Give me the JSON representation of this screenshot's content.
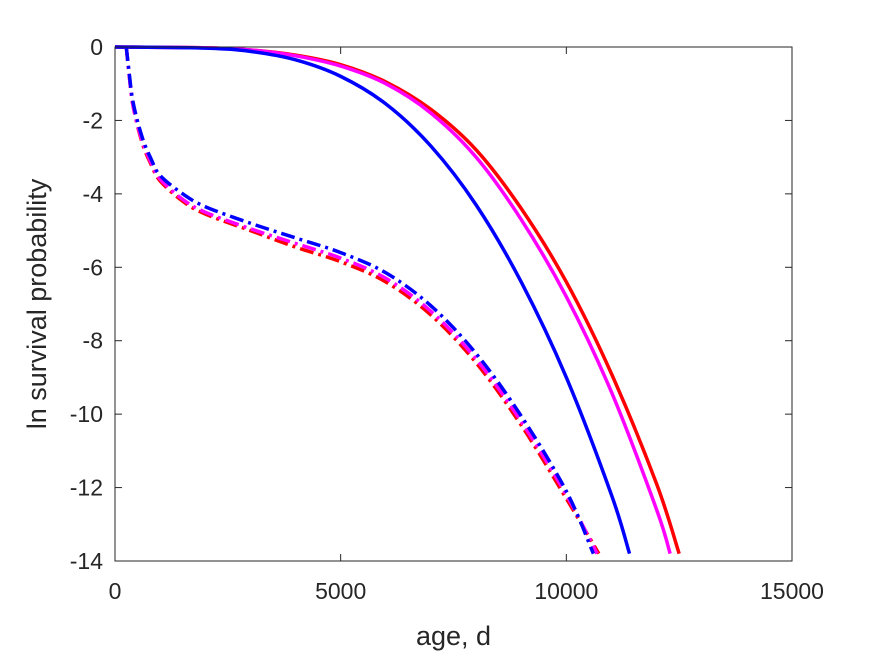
{
  "chart_data": {
    "type": "line",
    "title": "",
    "xlabel": "age, d",
    "ylabel": "ln survival probability",
    "xlim": [
      0,
      15000
    ],
    "ylim": [
      -14,
      0
    ],
    "xticks": [
      0,
      5000,
      10000,
      15000
    ],
    "yticks": [
      0,
      -2,
      -4,
      -6,
      -8,
      -10,
      -12,
      -14
    ],
    "xtick_labels": [
      "0",
      "5000",
      "10000",
      "15000"
    ],
    "ytick_labels": [
      "0",
      "-2",
      "-4",
      "-6",
      "-8",
      "-10",
      "-12",
      "-14"
    ],
    "grid": false,
    "legend": "none",
    "series": [
      {
        "color": "#ff0000",
        "style": "solid",
        "points": [
          [
            0,
            0
          ],
          [
            2000,
            -0.02
          ],
          [
            3000,
            -0.08
          ],
          [
            4000,
            -0.22
          ],
          [
            5000,
            -0.48
          ],
          [
            6000,
            -0.95
          ],
          [
            7000,
            -1.7
          ],
          [
            8000,
            -2.8
          ],
          [
            9000,
            -4.4
          ],
          [
            10000,
            -6.4
          ],
          [
            11000,
            -8.9
          ],
          [
            12000,
            -11.9
          ],
          [
            12500,
            -13.8
          ]
        ]
      },
      {
        "color": "#ff00ff",
        "style": "solid",
        "points": [
          [
            0,
            0
          ],
          [
            2000,
            -0.02
          ],
          [
            3000,
            -0.08
          ],
          [
            4000,
            -0.24
          ],
          [
            5000,
            -0.52
          ],
          [
            6000,
            -1.0
          ],
          [
            7000,
            -1.8
          ],
          [
            8000,
            -3.0
          ],
          [
            9000,
            -4.7
          ],
          [
            10000,
            -6.8
          ],
          [
            11000,
            -9.4
          ],
          [
            12000,
            -12.6
          ],
          [
            12300,
            -13.8
          ]
        ]
      },
      {
        "color": "#0000ff",
        "style": "solid",
        "points": [
          [
            0,
            0
          ],
          [
            2000,
            -0.03
          ],
          [
            3000,
            -0.12
          ],
          [
            4000,
            -0.35
          ],
          [
            5000,
            -0.8
          ],
          [
            6000,
            -1.55
          ],
          [
            7000,
            -2.7
          ],
          [
            8000,
            -4.3
          ],
          [
            9000,
            -6.4
          ],
          [
            10000,
            -9.0
          ],
          [
            11000,
            -12.2
          ],
          [
            11400,
            -13.8
          ]
        ]
      },
      {
        "color": "#ff0000",
        "style": "dashdot",
        "points": [
          [
            250,
            0
          ],
          [
            300,
            -0.6
          ],
          [
            400,
            -1.6
          ],
          [
            600,
            -2.6
          ],
          [
            800,
            -3.2
          ],
          [
            1000,
            -3.65
          ],
          [
            1500,
            -4.2
          ],
          [
            2000,
            -4.55
          ],
          [
            3000,
            -5.0
          ],
          [
            4000,
            -5.45
          ],
          [
            5000,
            -5.85
          ],
          [
            6000,
            -6.4
          ],
          [
            7000,
            -7.3
          ],
          [
            8000,
            -8.6
          ],
          [
            9000,
            -10.3
          ],
          [
            10000,
            -12.3
          ],
          [
            10720,
            -13.8
          ]
        ]
      },
      {
        "color": "#ff00ff",
        "style": "dashdot",
        "points": [
          [
            250,
            0
          ],
          [
            300,
            -0.6
          ],
          [
            400,
            -1.6
          ],
          [
            600,
            -2.55
          ],
          [
            800,
            -3.15
          ],
          [
            1000,
            -3.6
          ],
          [
            1500,
            -4.15
          ],
          [
            2000,
            -4.5
          ],
          [
            3000,
            -4.95
          ],
          [
            4000,
            -5.35
          ],
          [
            5000,
            -5.75
          ],
          [
            6000,
            -6.3
          ],
          [
            7000,
            -7.2
          ],
          [
            8000,
            -8.5
          ],
          [
            9000,
            -10.2
          ],
          [
            10000,
            -12.2
          ],
          [
            10680,
            -13.8
          ]
        ]
      },
      {
        "color": "#0000ff",
        "style": "dashdot",
        "points": [
          [
            250,
            0
          ],
          [
            300,
            -0.55
          ],
          [
            400,
            -1.5
          ],
          [
            600,
            -2.45
          ],
          [
            800,
            -3.05
          ],
          [
            1000,
            -3.5
          ],
          [
            1500,
            -4.0
          ],
          [
            2000,
            -4.35
          ],
          [
            3000,
            -4.8
          ],
          [
            4000,
            -5.2
          ],
          [
            5000,
            -5.6
          ],
          [
            6000,
            -6.15
          ],
          [
            7000,
            -7.05
          ],
          [
            8000,
            -8.35
          ],
          [
            9000,
            -10.05
          ],
          [
            10000,
            -12.1
          ],
          [
            10600,
            -13.8
          ]
        ]
      }
    ]
  }
}
